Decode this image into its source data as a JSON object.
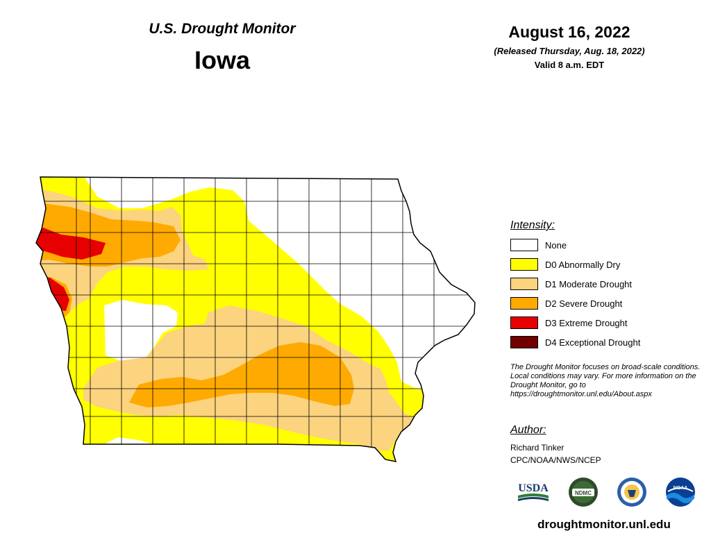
{
  "header": {
    "source": "U.S. Drought Monitor",
    "state": "Iowa",
    "date": "August 16, 2022",
    "released": "(Released Thursday, Aug. 18, 2022)",
    "valid": "Valid 8 a.m. EDT"
  },
  "legend": {
    "title": "Intensity:",
    "items": [
      {
        "label": "None",
        "color": "#FFFFFF"
      },
      {
        "label": "D0 Abnormally Dry",
        "color": "#FFFF00"
      },
      {
        "label": "D1 Moderate Drought",
        "color": "#FCD37F"
      },
      {
        "label": "D2 Severe Drought",
        "color": "#FFAA00"
      },
      {
        "label": "D3 Extreme Drought",
        "color": "#E60000"
      },
      {
        "label": "D4 Exceptional Drought",
        "color": "#730000"
      }
    ]
  },
  "note": "The Drought Monitor focuses on broad-scale conditions. Local conditions may vary. For more information on the Drought Monitor, go to https://droughtmonitor.unl.edu/About.aspx",
  "author": {
    "title": "Author:",
    "name": "Richard Tinker",
    "org": "CPC/NOAA/NWS/NCEP"
  },
  "logos": {
    "usda": "USDA",
    "ndmc": "NDMC",
    "noaa": "NOAA",
    "icons": [
      "usda-logo-icon",
      "ndmc-logo-icon",
      "commerce-seal-icon",
      "noaa-logo-icon"
    ]
  },
  "footer": {
    "url": "droughtmonitor.unl.edu"
  }
}
